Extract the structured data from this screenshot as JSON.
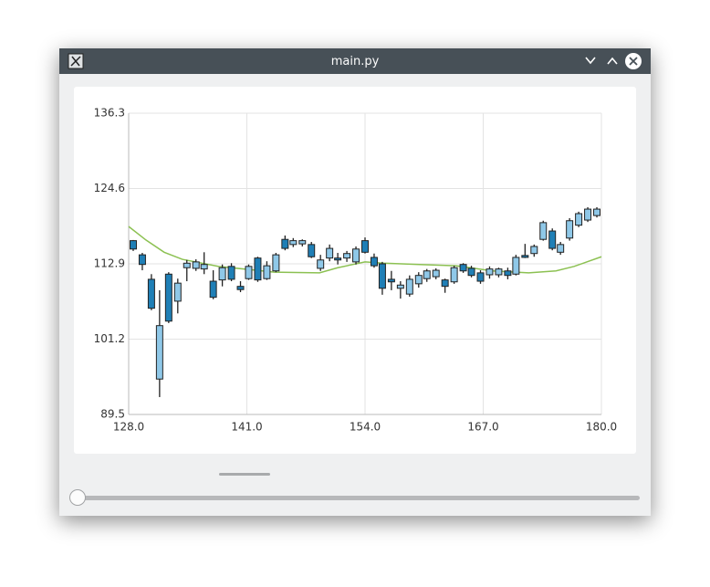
{
  "window": {
    "title": "main.py"
  },
  "chart_data": {
    "type": "candlestick",
    "x": [
      128.5,
      129.5,
      130.5,
      131.4,
      132.4,
      133.4,
      134.4,
      135.4,
      136.3,
      137.3,
      138.3,
      139.3,
      140.3,
      141.2,
      142.2,
      143.2,
      144.2,
      145.2,
      146.1,
      147.1,
      148.1,
      149.1,
      150.1,
      151.0,
      152.0,
      153.0,
      154.0,
      155.0,
      155.9,
      156.9,
      157.9,
      158.9,
      159.9,
      160.8,
      161.8,
      162.8,
      163.8,
      164.8,
      165.7,
      166.7,
      167.7,
      168.7,
      169.7,
      170.6,
      171.6,
      172.6,
      173.6,
      174.6,
      175.5,
      176.5,
      177.5,
      178.5,
      179.5
    ],
    "open": [
      116.5,
      114.3,
      110.5,
      95.0,
      111.3,
      107.1,
      112.3,
      112.2,
      112.1,
      110.2,
      110.4,
      112.5,
      109.4,
      110.6,
      113.8,
      110.6,
      111.8,
      116.7,
      115.9,
      116.0,
      115.9,
      112.2,
      113.8,
      113.8,
      113.8,
      113.2,
      116.5,
      113.9,
      112.9,
      110.5,
      109.1,
      108.2,
      109.8,
      110.6,
      110.9,
      110.4,
      110.1,
      112.8,
      112.2,
      111.5,
      111.2,
      111.2,
      111.8,
      111.3,
      114.2,
      114.5,
      116.7,
      118.0,
      114.7,
      116.9,
      118.9,
      119.7,
      120.4
    ],
    "high": [
      116.6,
      114.6,
      111.3,
      108.8,
      111.6,
      110.6,
      113.5,
      113.6,
      114.7,
      111.9,
      112.8,
      113.0,
      110.2,
      112.8,
      114.0,
      113.3,
      114.6,
      117.3,
      116.9,
      116.7,
      116.3,
      114.3,
      115.9,
      114.6,
      114.9,
      115.6,
      117.0,
      114.5,
      113.2,
      111.8,
      110.2,
      111.1,
      111.6,
      112.1,
      112.2,
      110.6,
      112.6,
      113.0,
      112.6,
      111.9,
      112.5,
      112.3,
      112.3,
      114.3,
      116.0,
      115.9,
      119.6,
      118.4,
      116.3,
      120.0,
      121.0,
      121.7,
      121.7
    ],
    "low": [
      114.9,
      111.9,
      105.7,
      92.2,
      103.7,
      105.2,
      110.2,
      111.8,
      111.3,
      107.4,
      109.4,
      110.2,
      108.5,
      110.4,
      110.1,
      110.4,
      111.6,
      115.0,
      115.5,
      115.6,
      113.8,
      111.8,
      113.3,
      112.8,
      113.2,
      112.8,
      114.5,
      112.3,
      108.1,
      108.8,
      107.5,
      107.8,
      109.2,
      110.1,
      110.5,
      108.4,
      109.8,
      111.5,
      110.8,
      109.8,
      110.6,
      110.8,
      110.5,
      111.1,
      113.8,
      114.0,
      116.5,
      115.0,
      114.3,
      116.5,
      118.6,
      119.4,
      120.1
    ],
    "close": [
      115.2,
      112.8,
      106.0,
      103.3,
      104.0,
      109.9,
      113.0,
      113.2,
      112.8,
      107.7,
      112.3,
      110.5,
      108.9,
      112.5,
      110.4,
      112.6,
      114.3,
      115.3,
      116.5,
      116.5,
      114.0,
      113.5,
      115.3,
      113.5,
      114.5,
      115.2,
      114.7,
      112.6,
      109.1,
      110.1,
      109.6,
      110.5,
      111.1,
      111.8,
      111.9,
      109.4,
      112.3,
      111.8,
      111.1,
      110.2,
      112.1,
      112.1,
      111.1,
      113.9,
      113.9,
      115.6,
      119.3,
      115.3,
      115.9,
      119.6,
      120.7,
      121.4,
      121.4
    ],
    "increasing_color": "#8fc8e8",
    "decreasing_color": "#1f7fb6",
    "overlay": {
      "color": "#8cc152",
      "x": [
        128,
        129.9,
        131.9,
        133.9,
        137.9,
        142,
        144,
        149,
        151,
        154,
        156,
        160,
        164,
        168,
        172,
        175,
        177,
        180
      ],
      "values": [
        118.7,
        116.6,
        114.7,
        113.6,
        112.5,
        111.9,
        111.6,
        111.5,
        112.3,
        113.2,
        113.0,
        112.8,
        112.6,
        111.8,
        111.5,
        111.8,
        112.5,
        114.0
      ]
    },
    "xlim": [
      128,
      180
    ],
    "xticks": [
      {
        "value": 128,
        "label": "128.0"
      },
      {
        "value": 141,
        "label": "141.0"
      },
      {
        "value": 154,
        "label": "154.0"
      },
      {
        "value": 167,
        "label": "167.0"
      },
      {
        "value": 180,
        "label": "180.0"
      }
    ],
    "ylim": [
      89.5,
      136.3
    ],
    "yticks": [
      89.5,
      101.2,
      112.9,
      124.6,
      136.3
    ],
    "grid": true
  }
}
